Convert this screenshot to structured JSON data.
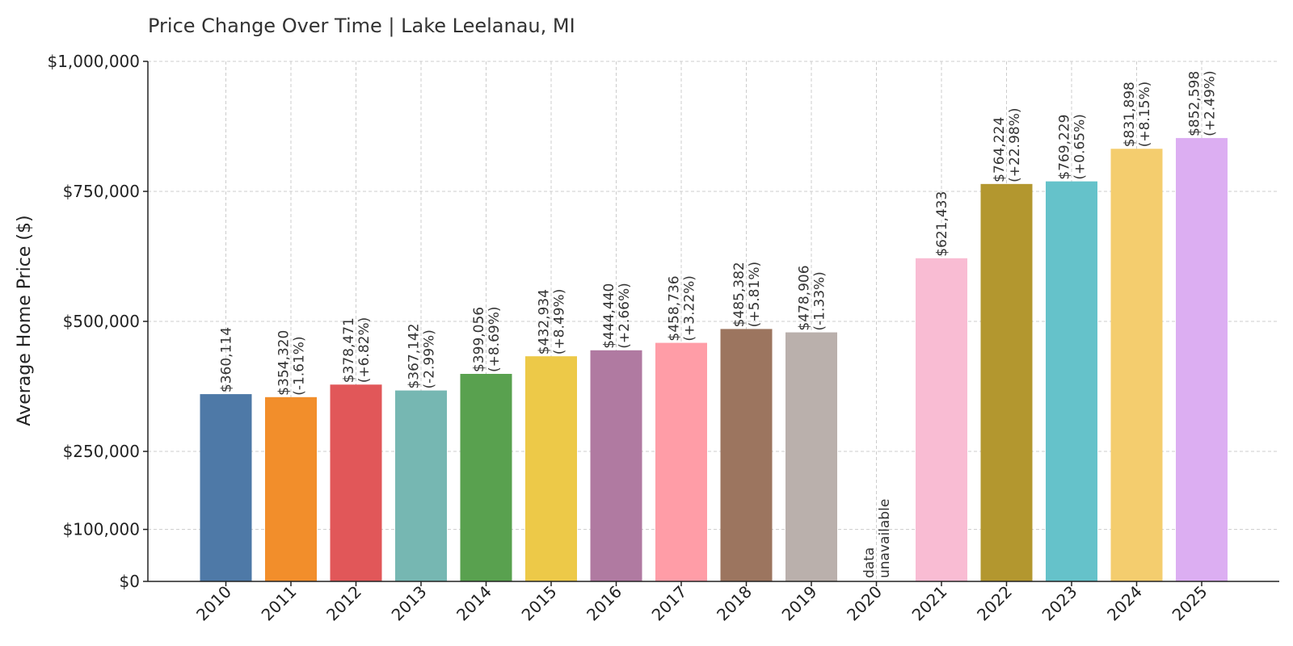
{
  "chart_data": {
    "type": "bar",
    "title": "Price Change Over Time | Lake Leelanau, MI",
    "ylabel": "Average Home Price ($)",
    "xlabel": "",
    "ylim": [
      0,
      1000000
    ],
    "yticks": [
      0,
      100000,
      250000,
      500000,
      750000,
      1000000
    ],
    "ytick_labels": [
      "$0",
      "$100,000",
      "$250,000",
      "$500,000",
      "$750,000",
      "$1,000,000"
    ],
    "grid": true,
    "categories": [
      "2010",
      "2011",
      "2012",
      "2013",
      "2014",
      "2015",
      "2016",
      "2017",
      "2018",
      "2019",
      "2020",
      "2021",
      "2022",
      "2023",
      "2024",
      "2025"
    ],
    "values": [
      360114,
      354320,
      378471,
      367142,
      399056,
      432934,
      444440,
      458736,
      485382,
      478906,
      null,
      621433,
      764224,
      769229,
      831898,
      852598
    ],
    "labels": [
      "$360,114",
      "$354,320",
      "$378,471",
      "$367,142",
      "$399,056",
      "$432,934",
      "$444,440",
      "$458,736",
      "$485,382",
      "$478,906",
      "data",
      "$621,433",
      "$764,224",
      "$769,229",
      "$831,898",
      "$852,598"
    ],
    "changes": [
      "",
      "(-1.61%)",
      "(+6.82%)",
      "(-2.99%)",
      "(+8.69%)",
      "(+8.49%)",
      "(+2.66%)",
      "(+3.22%)",
      "(+5.81%)",
      "(-1.33%)",
      "unavailable",
      "",
      "(+22.98%)",
      "(+0.65%)",
      "(+8.15%)",
      "(+2.49%)"
    ],
    "colors": [
      "#4e79a7",
      "#f28e2b",
      "#e15759",
      "#76b7b2",
      "#59a14f",
      "#edc948",
      "#b07aa1",
      "#ff9da7",
      "#9c755f",
      "#bab0ac",
      "#ffffff",
      "#f9bcd3",
      "#b3972f",
      "#65c2ca",
      "#f4cd6e",
      "#dcaef2"
    ]
  }
}
